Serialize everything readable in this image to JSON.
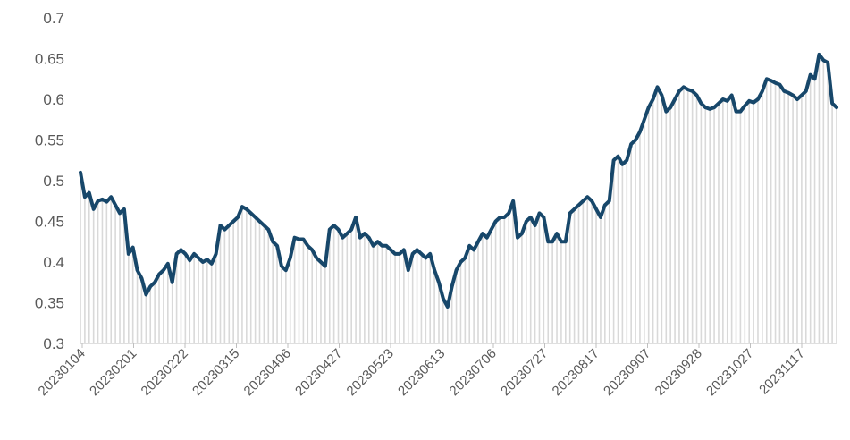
{
  "chart_data": {
    "type": "area",
    "title": "",
    "xlabel": "",
    "ylabel": "",
    "ylim": [
      0.3,
      0.7
    ],
    "yticks": [
      0.3,
      0.35,
      0.4,
      0.45,
      0.5,
      0.55,
      0.6,
      0.65,
      0.7
    ],
    "ytick_labels": [
      "0.3",
      "0.35",
      "0.4",
      "0.45",
      "0.5",
      "0.55",
      "0.6",
      "0.65",
      "0.7"
    ],
    "xtick_labels": [
      "20230104",
      "20230201",
      "20230222",
      "20230315",
      "20230406",
      "20230427",
      "20230523",
      "20230613",
      "20230706",
      "20230727",
      "20230817",
      "20230907",
      "20230928",
      "20231027",
      "20231117"
    ],
    "grid": false,
    "legend": "none",
    "colors": {
      "line": "#17476a",
      "fill": "#d9d9d9",
      "axis": "#bfbfbf"
    },
    "series": [
      {
        "values": [
          0.51,
          0.48,
          0.485,
          0.465,
          0.475,
          0.477,
          0.474,
          0.48,
          0.47,
          0.46,
          0.465,
          0.41,
          0.418,
          0.39,
          0.38,
          0.36,
          0.37,
          0.375,
          0.385,
          0.39,
          0.398,
          0.375,
          0.41,
          0.415,
          0.41,
          0.402,
          0.41,
          0.405,
          0.4,
          0.403,
          0.398,
          0.41,
          0.445,
          0.44,
          0.445,
          0.45,
          0.455,
          0.468,
          0.465,
          0.46,
          0.455,
          0.45,
          0.445,
          0.44,
          0.425,
          0.42,
          0.395,
          0.39,
          0.405,
          0.43,
          0.428,
          0.428,
          0.42,
          0.415,
          0.405,
          0.4,
          0.395,
          0.44,
          0.445,
          0.44,
          0.43,
          0.435,
          0.44,
          0.455,
          0.43,
          0.435,
          0.43,
          0.42,
          0.425,
          0.42,
          0.42,
          0.415,
          0.41,
          0.41,
          0.415,
          0.39,
          0.41,
          0.415,
          0.41,
          0.405,
          0.41,
          0.39,
          0.375,
          0.355,
          0.345,
          0.37,
          0.39,
          0.4,
          0.405,
          0.42,
          0.415,
          0.425,
          0.435,
          0.43,
          0.44,
          0.45,
          0.455,
          0.455,
          0.46,
          0.475,
          0.43,
          0.435,
          0.45,
          0.455,
          0.445,
          0.46,
          0.455,
          0.425,
          0.425,
          0.435,
          0.425,
          0.425,
          0.46,
          0.465,
          0.47,
          0.475,
          0.48,
          0.475,
          0.465,
          0.455,
          0.47,
          0.475,
          0.525,
          0.53,
          0.52,
          0.525,
          0.545,
          0.55,
          0.56,
          0.575,
          0.59,
          0.6,
          0.615,
          0.605,
          0.585,
          0.59,
          0.6,
          0.61,
          0.615,
          0.612,
          0.61,
          0.605,
          0.595,
          0.59,
          0.588,
          0.59,
          0.595,
          0.6,
          0.598,
          0.605,
          0.585,
          0.585,
          0.592,
          0.598,
          0.596,
          0.6,
          0.61,
          0.625,
          0.623,
          0.62,
          0.618,
          0.61,
          0.608,
          0.605,
          0.6,
          0.605,
          0.61,
          0.63,
          0.625,
          0.655,
          0.648,
          0.645,
          0.595,
          0.59
        ]
      }
    ]
  }
}
